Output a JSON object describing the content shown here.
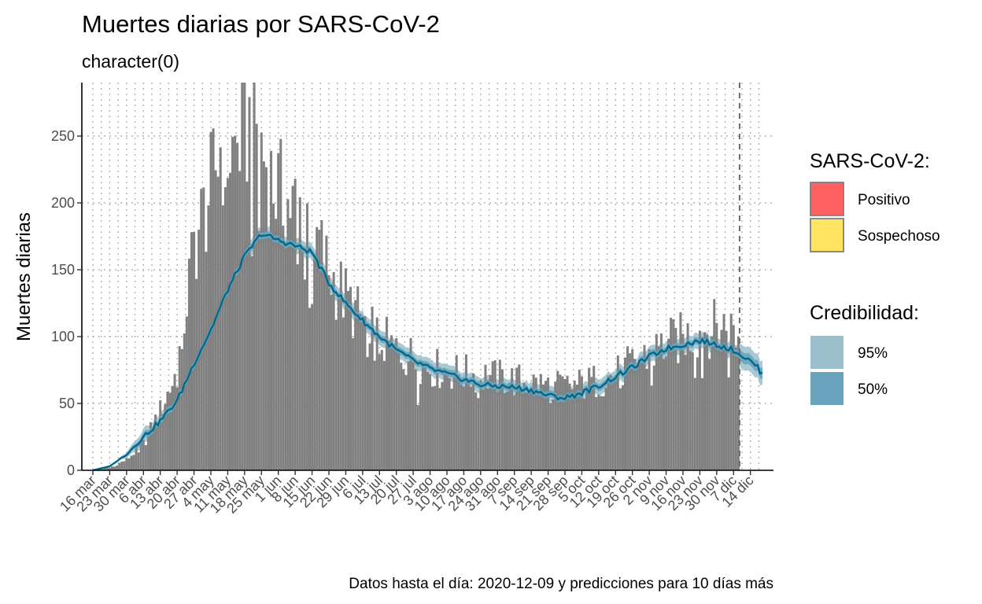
{
  "chart_data": {
    "type": "bar",
    "title": "Muertes diarias por SARS-CoV-2",
    "subtitle": "character(0)",
    "xlabel": "",
    "ylabel": "Muertes diarias",
    "ylim": [
      0,
      290
    ],
    "yticks": [
      0,
      50,
      100,
      150,
      200,
      250
    ],
    "x_start": "2020-03-16",
    "x_end": "2020-12-19",
    "last_data_date": "2020-12-09",
    "x_tick_labels": [
      "16 mar",
      "23 mar",
      "30 mar",
      "6 abr",
      "13 abr",
      "20 abr",
      "27 abr",
      "4 may",
      "11 may",
      "18 may",
      "25 may",
      "1 jun",
      "8 jun",
      "15 jun",
      "22 jun",
      "29 jun",
      "6 jul",
      "13 jul",
      "20 jul",
      "27 jul",
      "3 ago",
      "10 ago",
      "17 ago",
      "24 ago",
      "31 ago",
      "7 sep",
      "14 sep",
      "21 sep",
      "28 sep",
      "5 oct",
      "12 oct",
      "19 oct",
      "26 oct",
      "2 nov",
      "9 nov",
      "16 nov",
      "23 nov",
      "30 nov",
      "7 dic",
      "14 dic"
    ],
    "grid": true,
    "legend_position": "right",
    "bar_color": "#808080",
    "line_color": "#00688B",
    "band_95_color": "#9AC0CD",
    "band_50_color": "#68A4BC",
    "bar_knots": [
      [
        "2020-03-16",
        0
      ],
      [
        "2020-03-23",
        2
      ],
      [
        "2020-03-30",
        8
      ],
      [
        "2020-04-06",
        20
      ],
      [
        "2020-04-13",
        45
      ],
      [
        "2020-04-20",
        75
      ],
      [
        "2020-04-27",
        170
      ],
      [
        "2020-05-04",
        212
      ],
      [
        "2020-05-08",
        245
      ],
      [
        "2020-05-13",
        240
      ],
      [
        "2020-05-18",
        255
      ],
      [
        "2020-05-22",
        265
      ],
      [
        "2020-05-25",
        245
      ],
      [
        "2020-05-29",
        220
      ],
      [
        "2020-06-03",
        205
      ],
      [
        "2020-06-08",
        198
      ],
      [
        "2020-06-13",
        195
      ],
      [
        "2020-06-18",
        170
      ],
      [
        "2020-06-22",
        150
      ],
      [
        "2020-06-29",
        130
      ],
      [
        "2020-07-06",
        112
      ],
      [
        "2020-07-13",
        100
      ],
      [
        "2020-07-20",
        90
      ],
      [
        "2020-07-27",
        85
      ],
      [
        "2020-08-03",
        78
      ],
      [
        "2020-08-10",
        75
      ],
      [
        "2020-08-17",
        73
      ],
      [
        "2020-08-24",
        72
      ],
      [
        "2020-08-31",
        70
      ],
      [
        "2020-09-07",
        68
      ],
      [
        "2020-09-14",
        66
      ],
      [
        "2020-09-21",
        64
      ],
      [
        "2020-09-28",
        63
      ],
      [
        "2020-10-05",
        65
      ],
      [
        "2020-10-12",
        68
      ],
      [
        "2020-10-19",
        72
      ],
      [
        "2020-10-26",
        80
      ],
      [
        "2020-11-02",
        88
      ],
      [
        "2020-11-09",
        95
      ],
      [
        "2020-11-16",
        100
      ],
      [
        "2020-11-23",
        105
      ],
      [
        "2020-11-30",
        108
      ],
      [
        "2020-12-05",
        110
      ],
      [
        "2020-12-09",
        100
      ]
    ],
    "trend_knots": [
      [
        "2020-03-16",
        0
      ],
      [
        "2020-03-23",
        3
      ],
      [
        "2020-03-30",
        12
      ],
      [
        "2020-04-06",
        25
      ],
      [
        "2020-04-13",
        37
      ],
      [
        "2020-04-20",
        52
      ],
      [
        "2020-04-27",
        80
      ],
      [
        "2020-05-04",
        105
      ],
      [
        "2020-05-11",
        135
      ],
      [
        "2020-05-18",
        160
      ],
      [
        "2020-05-25",
        177
      ],
      [
        "2020-06-01",
        172
      ],
      [
        "2020-06-08",
        168
      ],
      [
        "2020-06-15",
        163
      ],
      [
        "2020-06-22",
        140
      ],
      [
        "2020-06-29",
        125
      ],
      [
        "2020-07-06",
        112
      ],
      [
        "2020-07-13",
        100
      ],
      [
        "2020-07-20",
        90
      ],
      [
        "2020-07-27",
        82
      ],
      [
        "2020-08-03",
        76
      ],
      [
        "2020-08-10",
        72
      ],
      [
        "2020-08-17",
        68
      ],
      [
        "2020-08-24",
        64
      ],
      [
        "2020-08-31",
        63
      ],
      [
        "2020-09-07",
        62
      ],
      [
        "2020-09-14",
        60
      ],
      [
        "2020-09-21",
        56
      ],
      [
        "2020-09-28",
        54
      ],
      [
        "2020-10-05",
        58
      ],
      [
        "2020-10-12",
        63
      ],
      [
        "2020-10-19",
        70
      ],
      [
        "2020-10-26",
        77
      ],
      [
        "2020-11-02",
        85
      ],
      [
        "2020-11-09",
        91
      ],
      [
        "2020-11-16",
        94
      ],
      [
        "2020-11-23",
        97
      ],
      [
        "2020-11-30",
        94
      ],
      [
        "2020-12-07",
        90
      ],
      [
        "2020-12-12",
        84
      ],
      [
        "2020-12-16",
        79
      ],
      [
        "2020-12-19",
        72
      ]
    ],
    "legend": {
      "sars_title": "SARS-CoV-2:",
      "sars_items": [
        {
          "label": "Positivo",
          "color": "#FF6161"
        },
        {
          "label": "Sospechoso",
          "color": "#FFE561"
        }
      ],
      "cred_title": "Credibilidad:",
      "cred_items": [
        {
          "label": "95%",
          "color": "#9AC0CD"
        },
        {
          "label": "50%",
          "color": "#68A4BC"
        }
      ]
    },
    "caption": "Datos hasta el día: 2020-12-09 y predicciones para 10 días más"
  }
}
